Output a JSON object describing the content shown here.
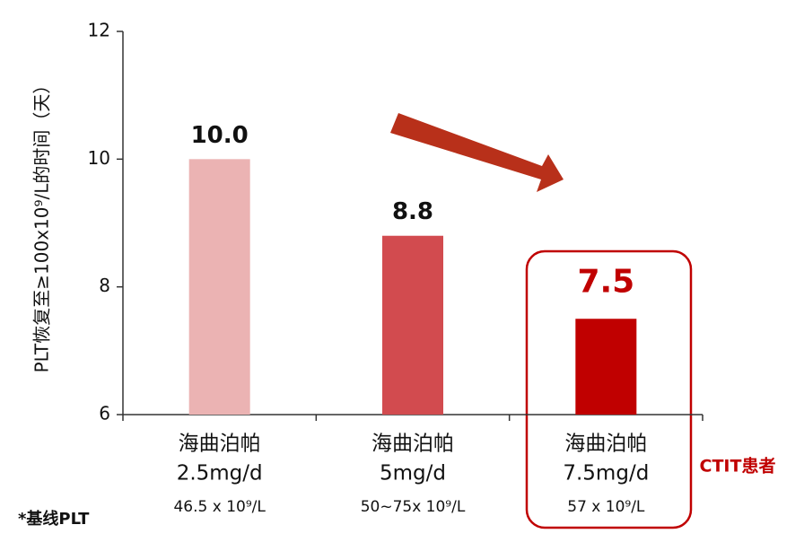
{
  "chart_data": {
    "type": "bar",
    "y_label": "PLT恢复至≥100x10⁹/L的时间（天）",
    "categories": [
      [
        "海曲泊帕",
        "2.5mg/d"
      ],
      [
        "海曲泊帕",
        "5mg/d"
      ],
      [
        "海曲泊帕",
        "7.5mg/d"
      ]
    ],
    "baseline_plt": [
      "46.5 x 10⁹/L",
      "50~75x 10⁹/L",
      "57 x 10⁹/L"
    ],
    "values": [
      10,
      8.8,
      7.5
    ],
    "value_labels": [
      "10.0",
      "8.8",
      "7.5"
    ],
    "colors": [
      "#ebb3b3",
      "#d24b4f",
      "#c00000"
    ],
    "value_label_colors": [
      "#111111",
      "#111111",
      "#c00000"
    ],
    "ylim": [
      6,
      12
    ],
    "yticks": [
      6,
      8,
      10,
      12
    ],
    "highlight_note": "CTIT患者",
    "footnote": "*基线PLT"
  }
}
